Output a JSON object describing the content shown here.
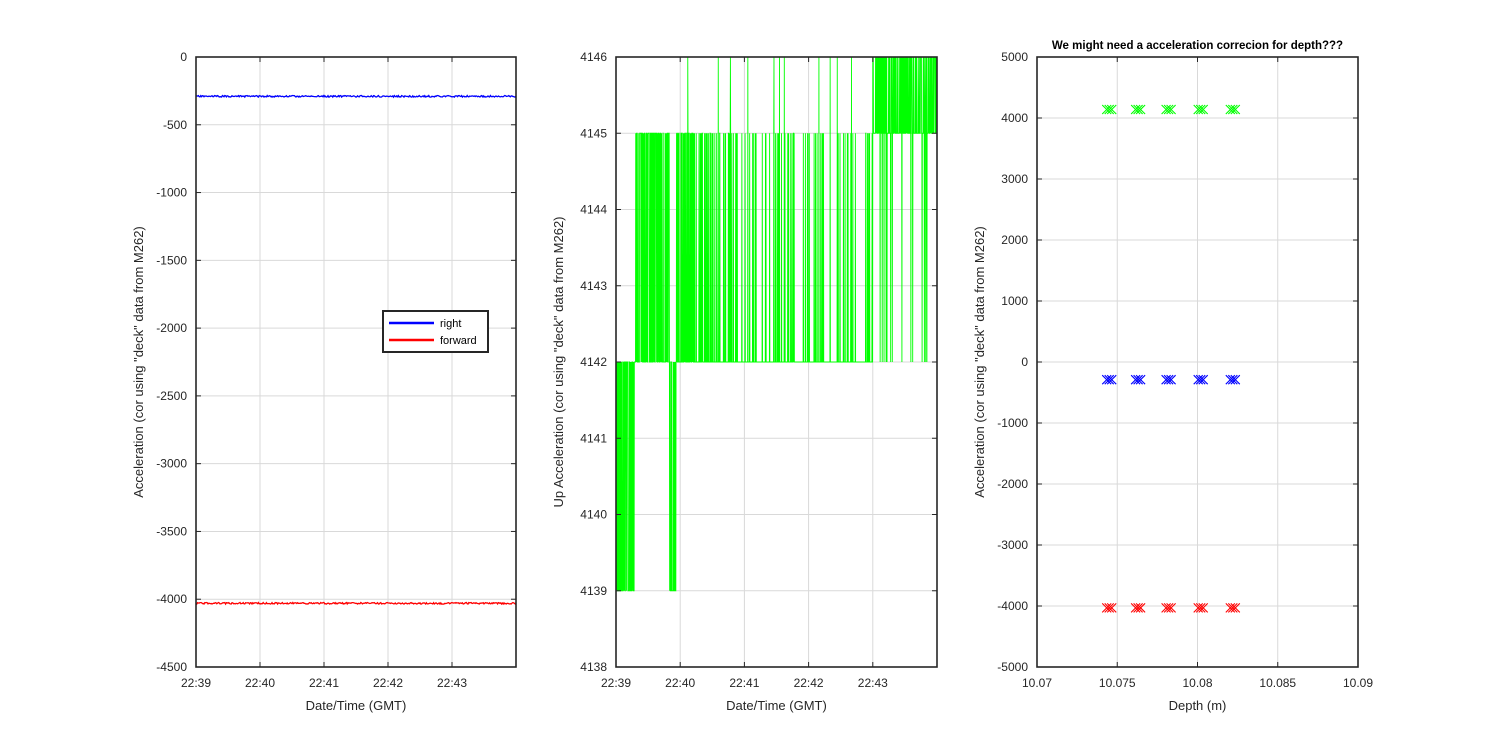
{
  "figure": {
    "background": "#ffffff",
    "grid_color": "#d9d9d9",
    "axis_color": "#262626"
  },
  "chart_data": [
    {
      "type": "line",
      "title": "",
      "xlabel": "Date/Time (GMT)",
      "ylabel": "Acceleration (cor using \"deck\" data from M262)",
      "x_ticks": [
        "22:39",
        "22:40",
        "22:41",
        "22:42",
        "22:43"
      ],
      "x_range": [
        "22:39:00",
        "22:44:00"
      ],
      "ylim": [
        -4500,
        0
      ],
      "y_ticks": [
        0,
        -500,
        -1000,
        -1500,
        -2000,
        -2500,
        -3000,
        -3500,
        -4000,
        -4500
      ],
      "grid": true,
      "legend_position": "middle-right",
      "series": [
        {
          "name": "right",
          "color": "#0000ff",
          "level": -290
        },
        {
          "name": "forward",
          "color": "#ff0000",
          "level": -4030
        }
      ]
    },
    {
      "type": "line",
      "title": "",
      "xlabel": "Date/Time (GMT)",
      "ylabel": "Up Acceleration (cor using \"deck\" data from M262)",
      "x_ticks": [
        "22:39",
        "22:40",
        "22:41",
        "22:42",
        "22:43"
      ],
      "x_range": [
        "22:39:00",
        "22:44:00"
      ],
      "ylim": [
        4138,
        4146
      ],
      "y_ticks": [
        4138,
        4139,
        4140,
        4141,
        4142,
        4143,
        4144,
        4145,
        4146
      ],
      "grid": true,
      "series": [
        {
          "color": "#00ff00",
          "description": "quantized signal toggling between 4139, 4142, 4145 and 4146 (upward trend)"
        }
      ]
    },
    {
      "type": "scatter",
      "title": "We might need a acceleration correcion for depth???",
      "xlabel": "Depth (m)",
      "ylabel": "Acceleration (cor using \"deck\" data from M262)",
      "xlim": [
        10.07,
        10.09
      ],
      "x_ticks": [
        "10.07",
        "10.075",
        "10.08",
        "10.085",
        "10.09"
      ],
      "ylim": [
        -5000,
        5000
      ],
      "y_ticks": [
        5000,
        4000,
        3000,
        2000,
        1000,
        0,
        -1000,
        -2000,
        -3000,
        -4000,
        -5000
      ],
      "grid": true,
      "marker": "x",
      "x": [
        10.0745,
        10.0763,
        10.0782,
        10.0802,
        10.0822
      ],
      "series": [
        {
          "color": "#00ff00",
          "values": [
            4140,
            4140,
            4140,
            4140,
            4140
          ]
        },
        {
          "color": "#0000ff",
          "values": [
            -290,
            -290,
            -290,
            -290,
            -290
          ]
        },
        {
          "color": "#ff0000",
          "values": [
            -4030,
            -4030,
            -4030,
            -4030,
            -4030
          ]
        }
      ]
    }
  ]
}
